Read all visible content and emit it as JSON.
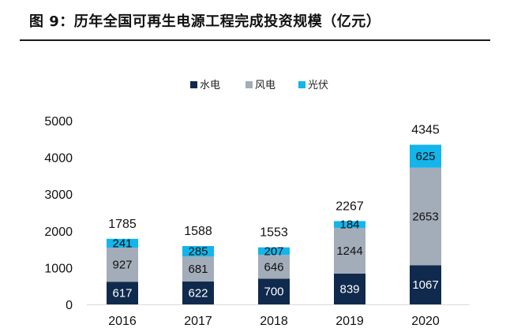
{
  "header": {
    "title": "图 9：历年全国可再生电源工程完成投资规模（亿元）"
  },
  "chart_data": {
    "type": "bar",
    "stacked": true,
    "categories": [
      "2016",
      "2017",
      "2018",
      "2019",
      "2020"
    ],
    "series": [
      {
        "name": "水电",
        "color": "#0f2a4d",
        "label_color": "#ffffff",
        "values": [
          617,
          622,
          700,
          839,
          1067
        ]
      },
      {
        "name": "风电",
        "color": "#a3acb9",
        "label_color": "#111111",
        "values": [
          927,
          681,
          646,
          1244,
          2653
        ]
      },
      {
        "name": "光伏",
        "color": "#13b5ea",
        "label_color": "#111111",
        "values": [
          241,
          285,
          207,
          184,
          625
        ]
      }
    ],
    "totals": [
      1785,
      1588,
      1553,
      2267,
      4345
    ],
    "yticks": [
      "0",
      "1000",
      "2000",
      "3000",
      "4000",
      "5000"
    ],
    "ylim": [
      0,
      5000
    ],
    "legend_position": "top-center",
    "grid": false
  }
}
